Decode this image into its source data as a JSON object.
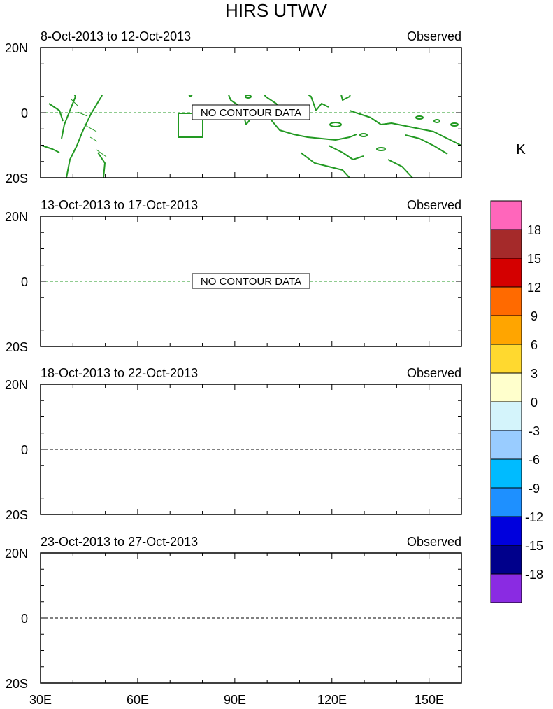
{
  "title": "HIRS UTWV",
  "panels": [
    {
      "date_range": "8-Oct-2013 to 12-Oct-2013",
      "label": "Observed",
      "has_data": false,
      "message": "NO CONTOUR DATA"
    },
    {
      "date_range": "13-Oct-2013 to 17-Oct-2013",
      "label": "Observed",
      "has_data": false,
      "message": "NO CONTOUR DATA"
    },
    {
      "date_range": "18-Oct-2013 to 22-Oct-2013",
      "label": "Observed",
      "has_data": true,
      "message": ""
    },
    {
      "date_range": "23-Oct-2013 to 27-Oct-2013",
      "label": "Observed",
      "has_data": true,
      "message": ""
    }
  ],
  "lat_labels": [
    "20N",
    "0",
    "20S"
  ],
  "lon_labels": [
    "30E",
    "60E",
    "90E",
    "120E",
    "150E"
  ],
  "colorbar": {
    "unit": "K",
    "levels": [
      "18",
      "15",
      "12",
      "9",
      "6",
      "3",
      "0",
      "-3",
      "-6",
      "-9",
      "-12",
      "-15",
      "-18"
    ],
    "colors": [
      "#ff66bb",
      "#a52a2a",
      "#d40000",
      "#ff6a00",
      "#ffa500",
      "#ffd92f",
      "#ffffcc",
      "#d4f4fb",
      "#99ccff",
      "#00bbff",
      "#1e90ff",
      "#0000dd",
      "#00008b",
      "#8a2be2"
    ]
  },
  "coast_color": "#229922"
}
